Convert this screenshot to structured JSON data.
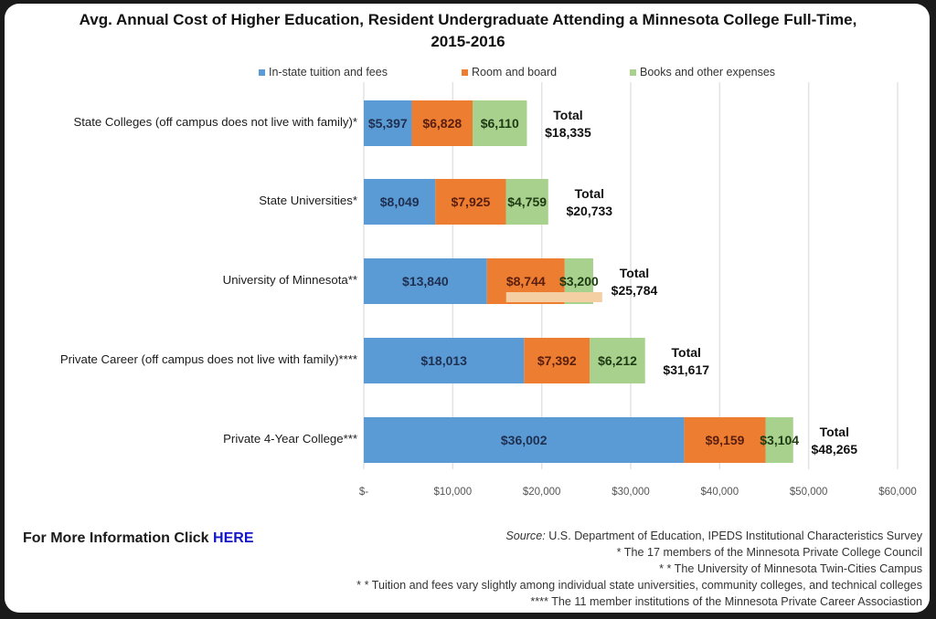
{
  "chart_data": {
    "type": "bar",
    "orientation": "horizontal",
    "stacked": true,
    "title": "Avg. Annual Cost of Higher Education, Resident Undergraduate Attending a Minnesota College Full-Time,",
    "title_line2": "2015-2016",
    "categories": [
      "State Colleges (off campus does not live with family)*",
      "State Universities*",
      "University of Minnesota**",
      "Private Career (off campus does not live with family)****",
      "Private 4-Year College***"
    ],
    "series": [
      {
        "name": "In-state tuition and fees",
        "color": "#5b9bd5",
        "label_color": "#1f2f4f",
        "values": [
          5397,
          8049,
          13840,
          18013,
          36002
        ],
        "labels": [
          "$5,397",
          "$8,049",
          "$13,840",
          "$18,013",
          "$36,002"
        ]
      },
      {
        "name": "Room and board",
        "color": "#ed7d31",
        "label_color": "#5a1e10",
        "values": [
          6828,
          7925,
          8744,
          7392,
          9159
        ],
        "labels": [
          "$6,828",
          "$7,925",
          "$8,744",
          "$7,392",
          "$9,159"
        ]
      },
      {
        "name": "Books and other expenses",
        "color": "#a9d18e",
        "label_color": "#1d3a12",
        "values": [
          6110,
          4759,
          3200,
          6212,
          3104
        ],
        "labels": [
          "$6,110",
          "$4,759",
          "$3,200",
          "$6,212",
          "$3,104"
        ]
      }
    ],
    "totals_prefix": "Total",
    "totals": [
      "$18,335",
      "$20,733",
      "$25,784",
      "$31,617",
      "$48,265"
    ],
    "xlim": [
      0,
      60000
    ],
    "xticks": [
      0,
      10000,
      20000,
      30000,
      40000,
      50000,
      60000
    ],
    "xtick_labels": [
      "$-",
      "$10,000",
      "$20,000",
      "$30,000",
      "$40,000",
      "$50,000",
      "$60,000"
    ],
    "grid": true,
    "legend_position": "top"
  },
  "footer": {
    "more_info_text": "For More Information Click",
    "more_info_link": "HERE",
    "source_label": "Source:",
    "source_text": " U.S. Department of Education, IPEDS Institutional Characteristics Survey",
    "notes": [
      "* The 17 members of the Minnesota Private College Council",
      "* * The University of Minnesota Twin-Cities Campus",
      "* * Tuition and fees vary slightly among individual state universities, community colleges, and technical colleges",
      "**** The 11 member institutions of the Minnesota Private Career Associastion"
    ]
  }
}
